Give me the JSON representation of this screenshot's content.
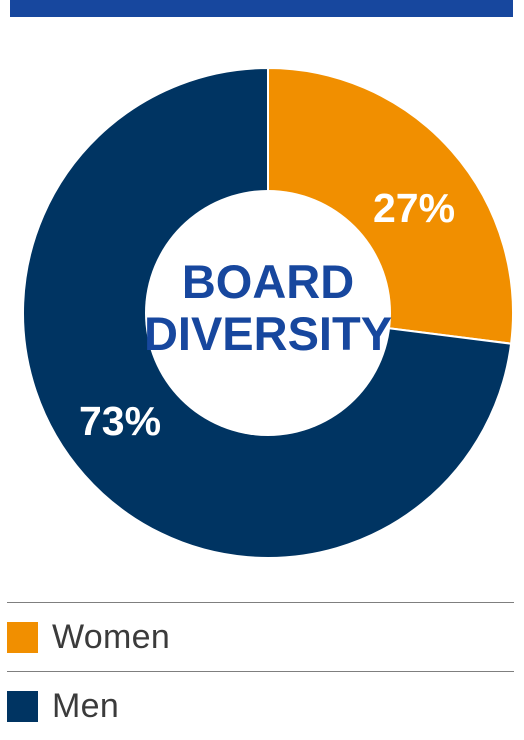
{
  "chart_data": {
    "type": "pie",
    "title": "BOARD DIVERSITY",
    "title_lines": [
      "BOARD",
      "DIVERSITY"
    ],
    "categories": [
      "Women",
      "Men"
    ],
    "values": [
      27,
      73
    ],
    "labels": [
      "27%",
      "73%"
    ],
    "colors": [
      "#f18f00",
      "#003462"
    ],
    "donut": true,
    "legend_position": "bottom"
  },
  "colors": {
    "accent_bar": "#17479e",
    "title_text": "#17479e",
    "label_text": "#ffffff"
  },
  "legend": {
    "items": [
      {
        "label": "Women",
        "color": "#f18f00"
      },
      {
        "label": "Men",
        "color": "#003462"
      }
    ]
  }
}
